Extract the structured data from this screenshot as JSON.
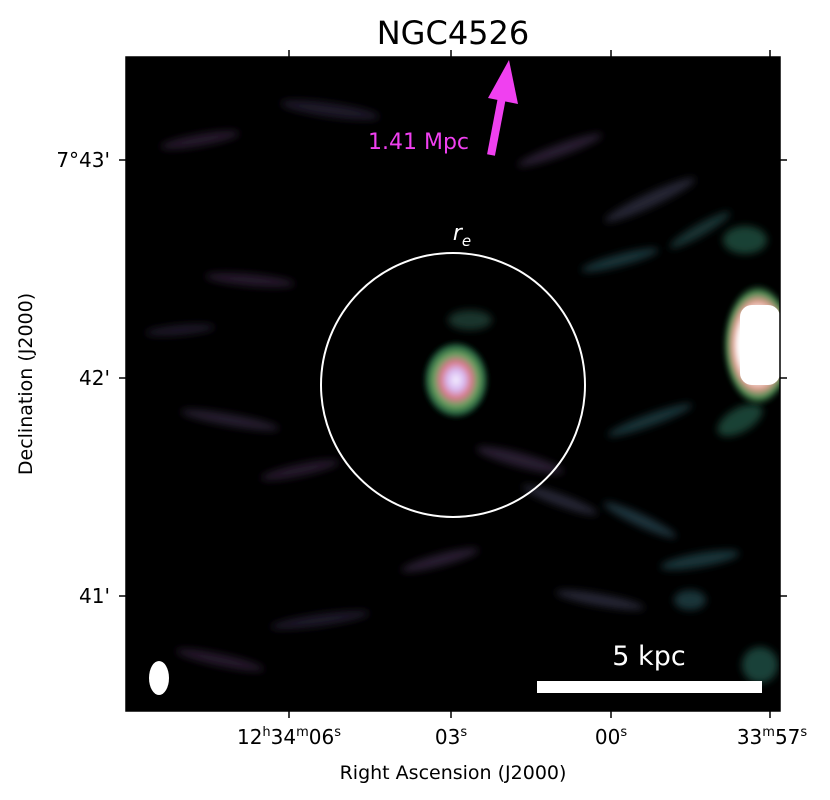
{
  "title": "NGC4526",
  "axes": {
    "xlabel": "Right Ascension (J2000)",
    "ylabel": "Declination (J2000)",
    "xticks": [
      {
        "h": "12",
        "hs": "h",
        "m": "34",
        "ms": "m",
        "s": "06",
        "ss": "s"
      },
      {
        "s": "03",
        "ss": "s"
      },
      {
        "s": "00",
        "ss": "s"
      },
      {
        "m": "33",
        "ms": "m",
        "s": "57",
        "ss": "s"
      }
    ],
    "yticks": [
      "7°43'",
      "42'",
      "41'"
    ]
  },
  "annotations": {
    "distance_label": "1.41 Mpc",
    "circle_label": "r",
    "circle_label_sub": "e",
    "scalebar_label": "5 kpc"
  },
  "colors": {
    "arrow": "#f040f0",
    "background": "#000000",
    "annotation": "#ffffff"
  },
  "colormap": "cubehelix"
}
